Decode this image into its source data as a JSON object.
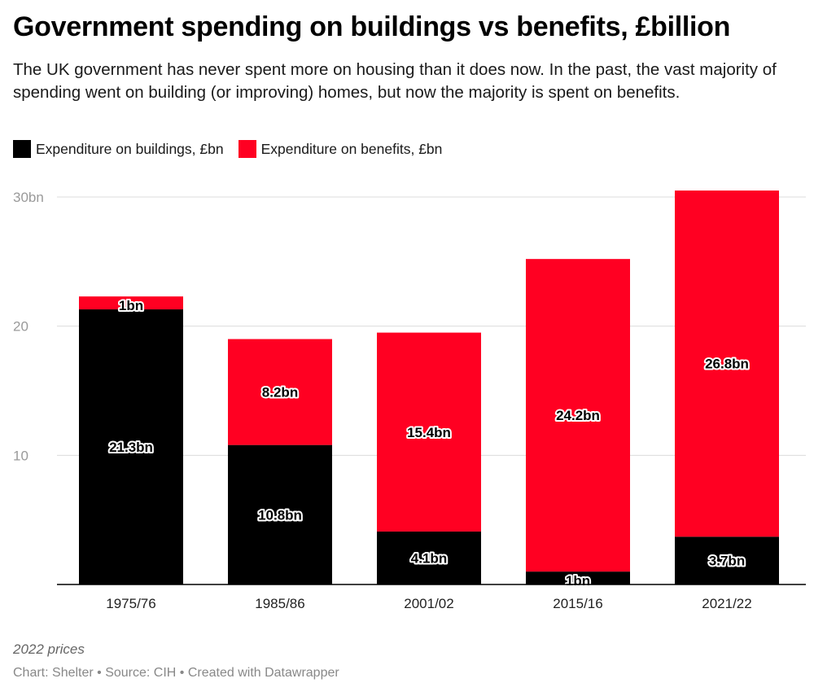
{
  "title": "Government spending on buildings vs benefits, £billion",
  "subtitle": "The UK government has never spent more on housing than it does now. In the past, the vast majority of spending went on building (or improving) homes, but now the majority is spent on benefits.",
  "legend": [
    {
      "label": "Expenditure on buildings, £bn",
      "color": "#000000"
    },
    {
      "label": "Expenditure on benefits, £bn",
      "color": "#ff0022"
    }
  ],
  "notes": "2022 prices",
  "footer": "Chart: Shelter • Source: CIH • Created with Datawrapper",
  "chart_data": {
    "type": "bar",
    "stacked": true,
    "title": "Government spending on buildings vs benefits, £billion",
    "categories": [
      "1975/76",
      "1985/86",
      "2001/02",
      "2015/16",
      "2021/22"
    ],
    "series": [
      {
        "name": "Expenditure on buildings, £bn",
        "color": "#000000",
        "values": [
          21.3,
          10.8,
          4.1,
          1,
          3.7
        ],
        "labels": [
          "21.3bn",
          "10.8bn",
          "4.1bn",
          "1bn",
          "3.7bn"
        ]
      },
      {
        "name": "Expenditure on benefits, £bn",
        "color": "#ff0022",
        "values": [
          1,
          8.2,
          15.4,
          24.2,
          26.8
        ],
        "labels": [
          "1bn",
          "8.2bn",
          "15.4bn",
          "24.2bn",
          "26.8bn"
        ]
      }
    ],
    "y_ticks": [
      {
        "value": 10,
        "label": "10"
      },
      {
        "value": 20,
        "label": "20"
      },
      {
        "value": 30,
        "label": "30bn"
      }
    ],
    "ylim": [
      0,
      30
    ],
    "grid": true,
    "xlabel": "",
    "ylabel": ""
  }
}
